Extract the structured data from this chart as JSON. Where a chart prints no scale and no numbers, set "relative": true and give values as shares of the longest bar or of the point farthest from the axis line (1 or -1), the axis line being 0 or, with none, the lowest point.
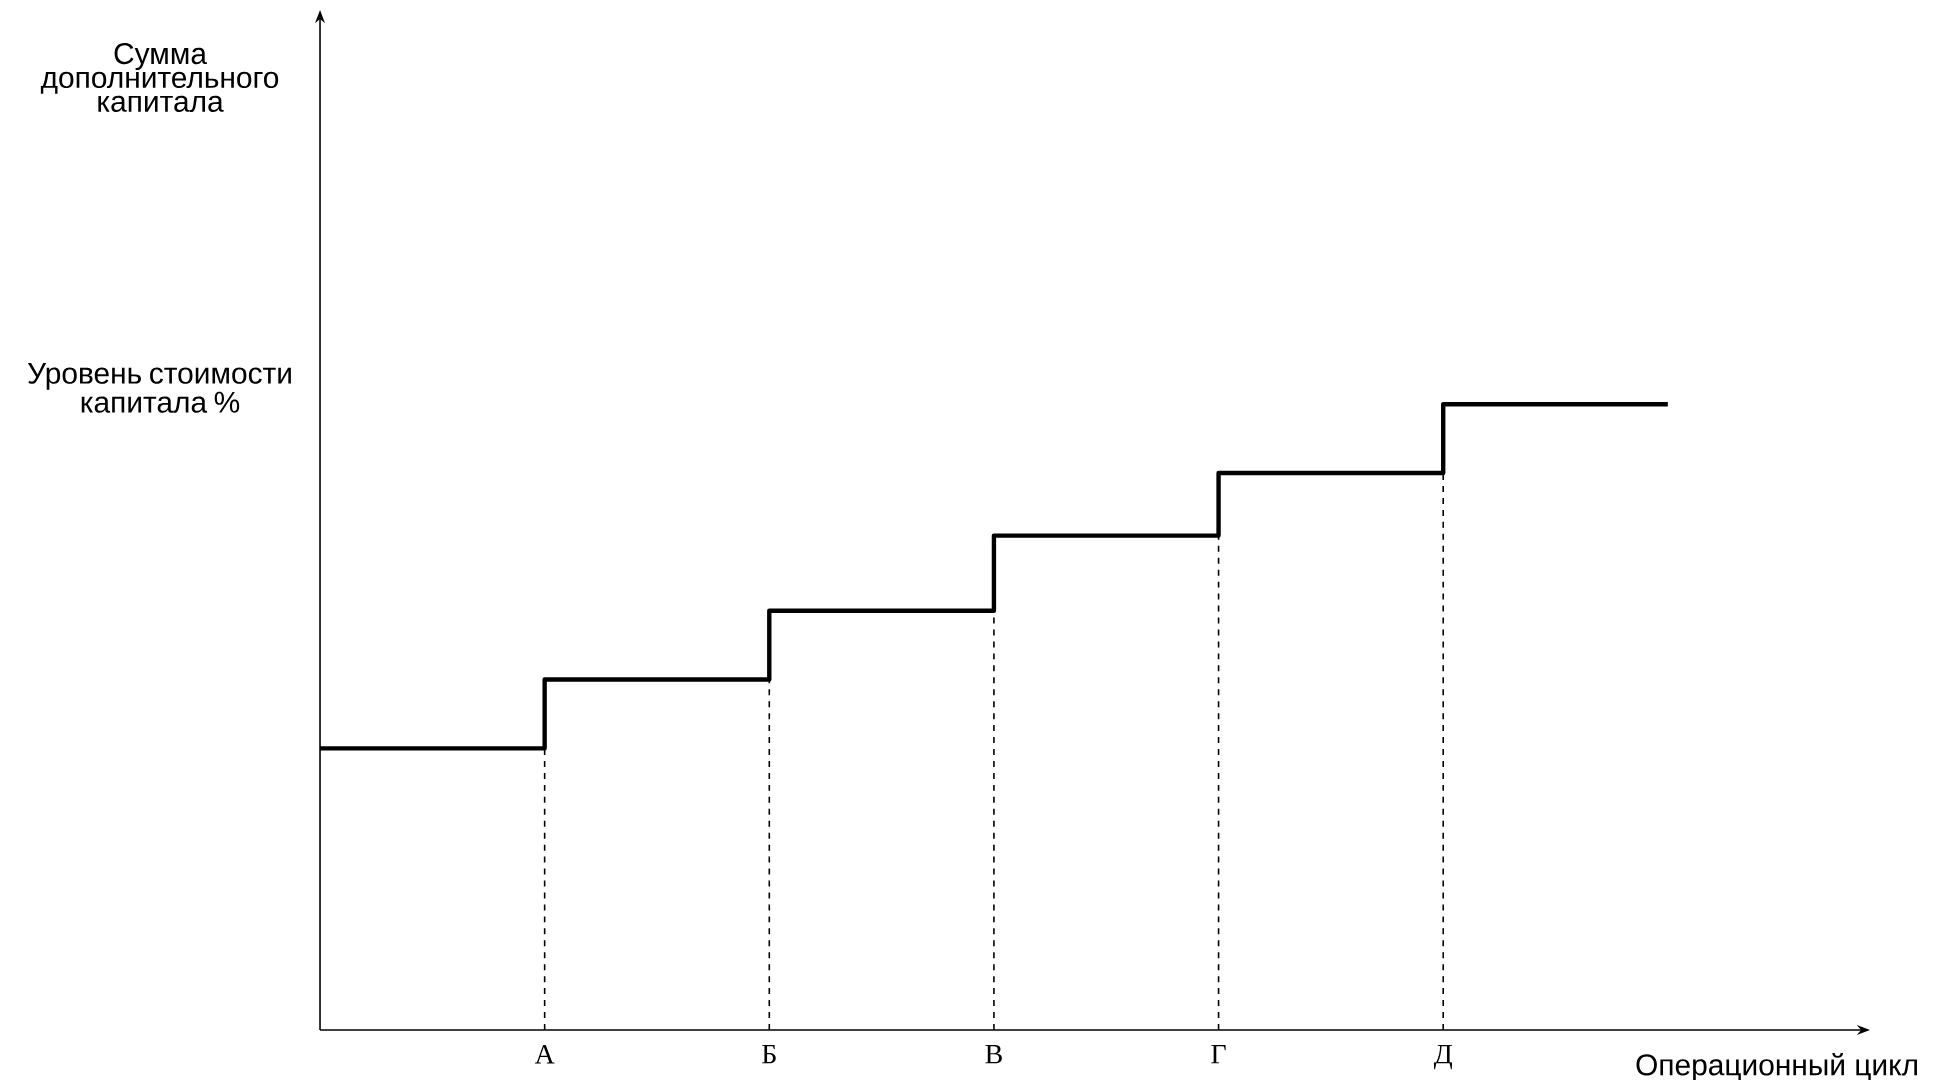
{
  "chart_data": {
    "type": "step",
    "relative": true,
    "xlabel": "Операционный цикл",
    "annotations": [
      "Сумма дополнительного капитала",
      "Уровень стоимости капитала %"
    ],
    "categories": [
      null,
      "А",
      "Б",
      "В",
      "Г",
      "Д",
      null
    ],
    "values": [
      0.45,
      0.56,
      0.67,
      0.79,
      0.89,
      1,
      1
    ],
    "color": "#000000",
    "ref_lines": [
      {
        "axis": "x",
        "value": "А",
        "line_style": "dashed"
      },
      {
        "axis": "x",
        "value": "Б",
        "line_style": "dashed"
      },
      {
        "axis": "x",
        "value": "В",
        "line_style": "dashed"
      },
      {
        "axis": "x",
        "value": "Г",
        "line_style": "dashed"
      },
      {
        "axis": "x",
        "value": "Д",
        "line_style": "dashed"
      }
    ]
  }
}
